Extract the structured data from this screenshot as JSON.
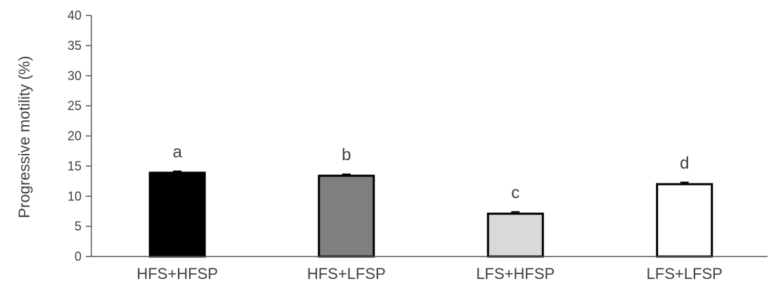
{
  "chart_data": {
    "type": "bar",
    "title": "",
    "xlabel": "",
    "ylabel": "Progressive motility (%)",
    "ylim": [
      0,
      40
    ],
    "yticks": [
      0,
      5,
      10,
      15,
      20,
      25,
      30,
      35,
      40
    ],
    "grid": false,
    "categories": [
      "HFS+HFSP",
      "HFS+LFSP",
      "LFS+HFSP",
      "LFS+LFSP"
    ],
    "values": [
      13.9,
      13.4,
      7.1,
      12.0
    ],
    "errors": [
      0.25,
      0.25,
      0.3,
      0.3
    ],
    "significance_labels": [
      "a",
      "b",
      "c",
      "d"
    ],
    "bar_colors": [
      "#000000",
      "#7f7f7f",
      "#d9d9d9",
      "#ffffff"
    ],
    "bar_edge_color": "#000000",
    "axis_color": "#595959"
  }
}
